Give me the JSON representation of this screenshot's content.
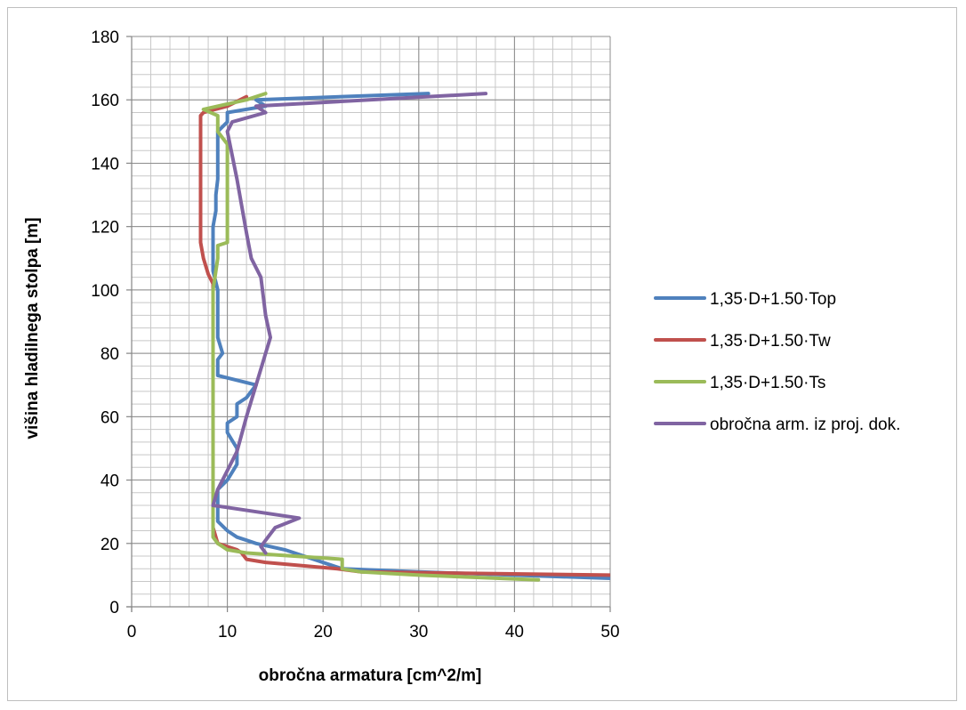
{
  "chart_data": {
    "type": "line",
    "xlabel": "obročna armatura [cm^2/m]",
    "ylabel": "višina hladilnega stolpa [m]",
    "xlim": [
      0,
      50
    ],
    "ylim": [
      0,
      180
    ],
    "x_ticks": [
      0,
      10,
      20,
      30,
      40,
      50
    ],
    "y_ticks": [
      0,
      20,
      40,
      60,
      80,
      100,
      120,
      140,
      160,
      180
    ],
    "grid": true,
    "legend_position": "right",
    "series": [
      {
        "name": "1,35·D+1.50·Top",
        "color": "#4f81bd",
        "points": [
          [
            50,
            9
          ],
          [
            40,
            10
          ],
          [
            30,
            11
          ],
          [
            22,
            12
          ],
          [
            18,
            16
          ],
          [
            16,
            18
          ],
          [
            13,
            20
          ],
          [
            12,
            21
          ],
          [
            11,
            22
          ],
          [
            10,
            24
          ],
          [
            9,
            27
          ],
          [
            9,
            31
          ],
          [
            9,
            37
          ],
          [
            10,
            40
          ],
          [
            11,
            45
          ],
          [
            11,
            50
          ],
          [
            10,
            55
          ],
          [
            10,
            58
          ],
          [
            11,
            60
          ],
          [
            11,
            64
          ],
          [
            12,
            66
          ],
          [
            13,
            70
          ],
          [
            9,
            73
          ],
          [
            9,
            78
          ],
          [
            9.5,
            80
          ],
          [
            9,
            85
          ],
          [
            9,
            90
          ],
          [
            9,
            95
          ],
          [
            9,
            100
          ],
          [
            8.5,
            106
          ],
          [
            8.5,
            110
          ],
          [
            8.5,
            115
          ],
          [
            8.5,
            120
          ],
          [
            8.8,
            125
          ],
          [
            8.8,
            130
          ],
          [
            9,
            135
          ],
          [
            9,
            140
          ],
          [
            9,
            145
          ],
          [
            9,
            150
          ],
          [
            10,
            153
          ],
          [
            10,
            156
          ],
          [
            14,
            158
          ],
          [
            13,
            160
          ],
          [
            31,
            162
          ]
        ]
      },
      {
        "name": "1,35·D+1.50·Tw",
        "color": "#c0504d",
        "points": [
          [
            50,
            10
          ],
          [
            24,
            11
          ],
          [
            21.5,
            12
          ],
          [
            14,
            14
          ],
          [
            12,
            15
          ],
          [
            11.5,
            17
          ],
          [
            11,
            18
          ],
          [
            9,
            20
          ],
          [
            8.5,
            25
          ],
          [
            8.5,
            30
          ],
          [
            8.5,
            35
          ],
          [
            8.5,
            40
          ],
          [
            8.5,
            50
          ],
          [
            8.5,
            60
          ],
          [
            8.5,
            70
          ],
          [
            8.5,
            80
          ],
          [
            8.5,
            88
          ],
          [
            8.5,
            90
          ],
          [
            8.5,
            98
          ],
          [
            8.5,
            102
          ],
          [
            8,
            105
          ],
          [
            7.5,
            110
          ],
          [
            7.2,
            115
          ],
          [
            7.2,
            120
          ],
          [
            7.2,
            130
          ],
          [
            7.2,
            140
          ],
          [
            7.2,
            150
          ],
          [
            7.2,
            155
          ],
          [
            7.5,
            156
          ],
          [
            10,
            158
          ],
          [
            12,
            161
          ]
        ]
      },
      {
        "name": "1,35·D+1.50·Ts",
        "color": "#9bbb59",
        "points": [
          [
            42.5,
            8.5
          ],
          [
            30,
            10
          ],
          [
            24,
            11
          ],
          [
            22,
            12
          ],
          [
            22,
            15
          ],
          [
            12,
            17
          ],
          [
            10,
            18
          ],
          [
            9.5,
            19
          ],
          [
            9,
            20
          ],
          [
            8.5,
            22
          ],
          [
            8.5,
            24
          ],
          [
            8.5,
            30
          ],
          [
            8.5,
            40
          ],
          [
            8.5,
            50
          ],
          [
            8.5,
            60
          ],
          [
            8.5,
            70
          ],
          [
            8.5,
            80
          ],
          [
            8.5,
            90
          ],
          [
            8.5,
            100
          ],
          [
            8.8,
            106
          ],
          [
            9,
            110
          ],
          [
            9,
            114
          ],
          [
            10,
            115
          ],
          [
            10,
            120
          ],
          [
            10,
            130
          ],
          [
            10,
            140
          ],
          [
            10,
            146
          ],
          [
            9.5,
            148
          ],
          [
            9,
            150
          ],
          [
            9,
            155
          ],
          [
            7.5,
            157
          ],
          [
            12,
            160
          ],
          [
            14,
            162
          ]
        ]
      },
      {
        "name": "obročna arm. iz proj. dok.",
        "color": "#8064a2",
        "points": [
          [
            14,
            17
          ],
          [
            13.5,
            19
          ],
          [
            14.5,
            23
          ],
          [
            15,
            25
          ],
          [
            17.5,
            28
          ],
          [
            8.5,
            32
          ],
          [
            9,
            37
          ],
          [
            10,
            43
          ],
          [
            11,
            49
          ],
          [
            12,
            60
          ],
          [
            13,
            70
          ],
          [
            14,
            80
          ],
          [
            14.5,
            85
          ],
          [
            14,
            92
          ],
          [
            13.5,
            104
          ],
          [
            12.5,
            110
          ],
          [
            12,
            118
          ],
          [
            11,
            135
          ],
          [
            10,
            150
          ],
          [
            10.5,
            153
          ],
          [
            14,
            156
          ],
          [
            13,
            158
          ],
          [
            37,
            162
          ]
        ]
      }
    ]
  }
}
